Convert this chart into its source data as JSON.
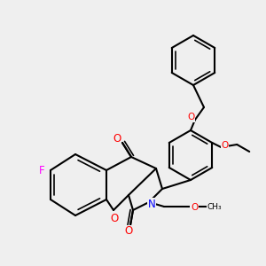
{
  "bg_color": "#efefef",
  "bond_color": "#000000",
  "bond_width": 1.5,
  "atom_colors": {
    "O": "#ff0000",
    "N": "#0000ff",
    "F": "#ff00ff",
    "C": "#000000"
  },
  "font_size": 7.5,
  "fig_width": 3.0,
  "fig_height": 3.0,
  "dpi": 100
}
